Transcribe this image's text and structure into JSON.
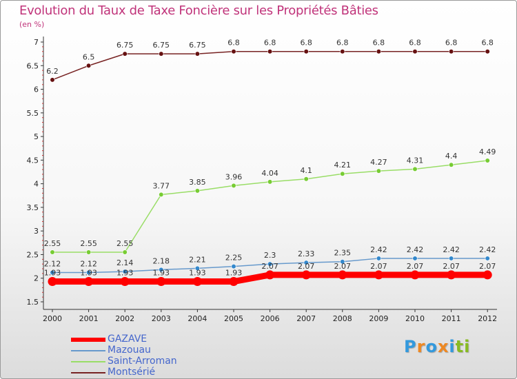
{
  "chart_data": {
    "type": "line",
    "title": "Evolution du Taux de Taxe Foncière sur les Propriétés Bâties",
    "ylabel": "(en %)",
    "xlabel": "",
    "ylim": [
      1.5,
      7
    ],
    "yticks": [
      "1.5",
      "2",
      "2.5",
      "3",
      "3.5",
      "4",
      "4.5",
      "5",
      "5.5",
      "6",
      "6.5",
      "7"
    ],
    "categories": [
      "2000",
      "2001",
      "2002",
      "2003",
      "2004",
      "2005",
      "2006",
      "2007",
      "2008",
      "2009",
      "2010",
      "2011",
      "2012"
    ],
    "series": [
      {
        "name": "GAZAVE",
        "color": "#ff0000",
        "values": [
          1.93,
          1.93,
          1.93,
          1.93,
          1.93,
          1.93,
          2.07,
          2.07,
          2.07,
          2.07,
          2.07,
          2.07,
          2.07
        ],
        "labels": [
          "1.93",
          "1.93",
          "1.93",
          "1.93",
          "1.93",
          "1.93",
          "2.07",
          "2.07",
          "2.07",
          "2.07",
          "2.07",
          "2.07",
          "2.07"
        ]
      },
      {
        "name": "Mazouau",
        "color": "#6699cc",
        "marker": "#3388cc",
        "values": [
          2.12,
          2.12,
          2.14,
          2.18,
          2.21,
          2.25,
          2.3,
          2.33,
          2.35,
          2.42,
          2.42,
          2.42,
          2.42
        ],
        "labels": [
          "2.12",
          "2.12",
          "2.14",
          "2.18",
          "2.21",
          "2.25",
          "2.3",
          "2.33",
          "2.35",
          "2.42",
          "2.42",
          "2.42",
          "2.42"
        ]
      },
      {
        "name": "Saint-Arroman",
        "color": "#99dd66",
        "marker": "#77cc33",
        "values": [
          2.55,
          2.55,
          2.55,
          3.77,
          3.85,
          3.96,
          4.04,
          4.1,
          4.21,
          4.27,
          4.31,
          4.4,
          4.49
        ],
        "labels": [
          "2.55",
          "2.55",
          "2.55",
          "3.77",
          "3.85",
          "3.96",
          "4.04",
          "4.1",
          "4.21",
          "4.27",
          "4.31",
          "4.4",
          "4.49"
        ]
      },
      {
        "name": "Montsérié",
        "color": "#772222",
        "marker": "#661111",
        "values": [
          6.2,
          6.5,
          6.75,
          6.75,
          6.75,
          6.8,
          6.8,
          6.8,
          6.8,
          6.8,
          6.8,
          6.8,
          6.8
        ],
        "labels": [
          "6.2",
          "6.5",
          "6.75",
          "6.75",
          "6.75",
          "6.8",
          "6.8",
          "6.8",
          "6.8",
          "6.8",
          "6.8",
          "6.8",
          "6.8"
        ]
      }
    ],
    "legend": "bottom-left"
  },
  "logo": {
    "letters": [
      "P",
      "r",
      "o",
      "x",
      "i",
      "t",
      "i"
    ],
    "colors": [
      "#3399dd",
      "#ee8822",
      "#3399dd",
      "#ee8822",
      "#3399dd",
      "#88bb22",
      "#88bb22"
    ]
  }
}
